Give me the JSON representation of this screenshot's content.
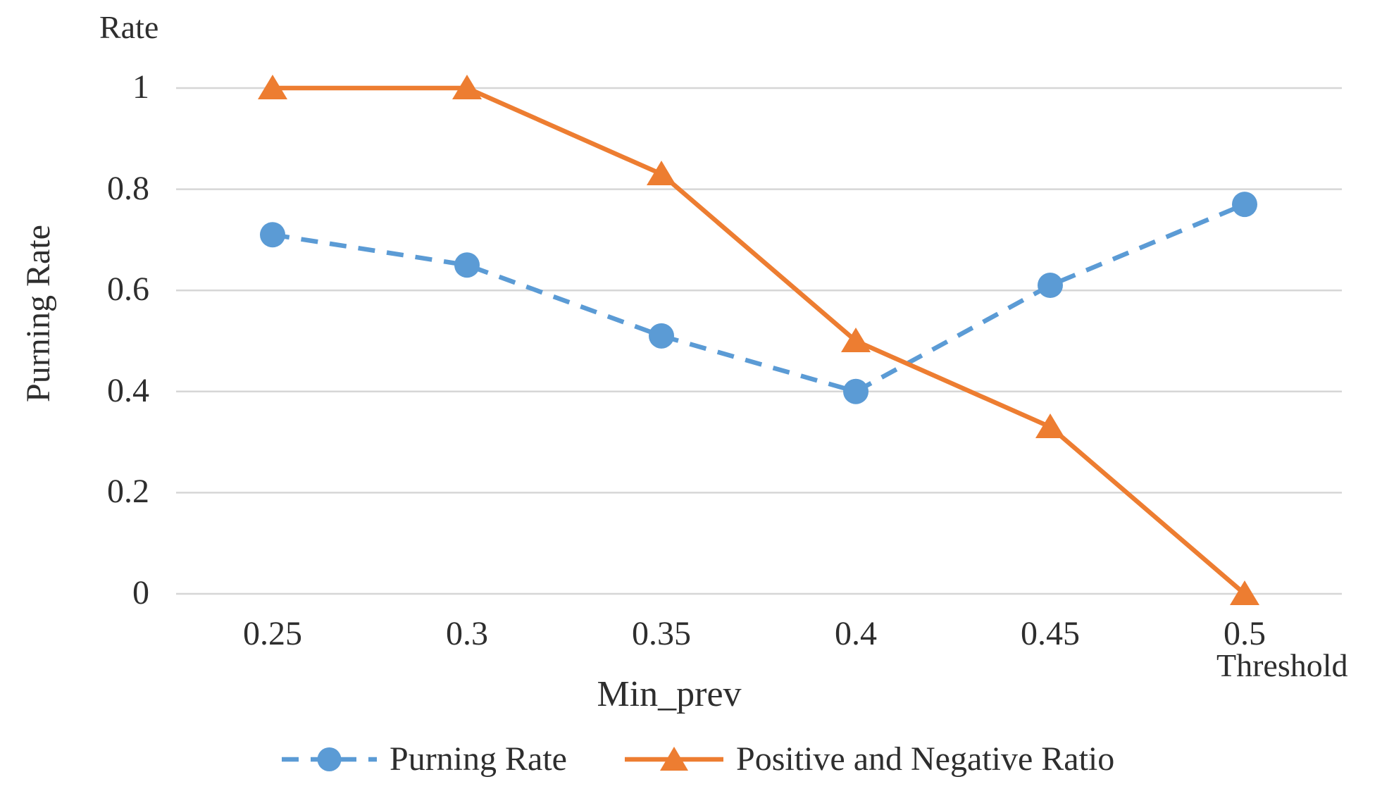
{
  "page": {
    "background": "#FFFFFF"
  },
  "chart_data": {
    "type": "line",
    "title": "",
    "y_axis_top_label": "Rate",
    "ylabel": "Purning Rate",
    "xlabel": "Min_prev",
    "x_axis_right_label": "Threshold",
    "categories": [
      "0.25",
      "0.3",
      "0.35",
      "0.4",
      "0.45",
      "0.5"
    ],
    "x_numeric": [
      0.25,
      0.3,
      0.35,
      0.4,
      0.45,
      0.5
    ],
    "y_ticks": [
      "0",
      "0.2",
      "0.4",
      "0.6",
      "0.8",
      "1"
    ],
    "ylim": [
      0,
      1
    ],
    "grid": true,
    "legend_position": "bottom",
    "colors": {
      "gridline": "#D6D6D6",
      "text": "#2E2E2E"
    },
    "series": [
      {
        "name": "Purning Rate",
        "color": "#5B9BD5",
        "line_style": "dashed",
        "marker": "circle",
        "values": [
          0.71,
          0.65,
          0.51,
          0.4,
          0.61,
          0.77
        ]
      },
      {
        "name": "Positive and Negative Ratio",
        "color": "#ED7D31",
        "line_style": "solid",
        "marker": "triangle",
        "values": [
          1,
          1,
          0.83,
          0.5,
          0.33,
          0
        ]
      }
    ]
  }
}
